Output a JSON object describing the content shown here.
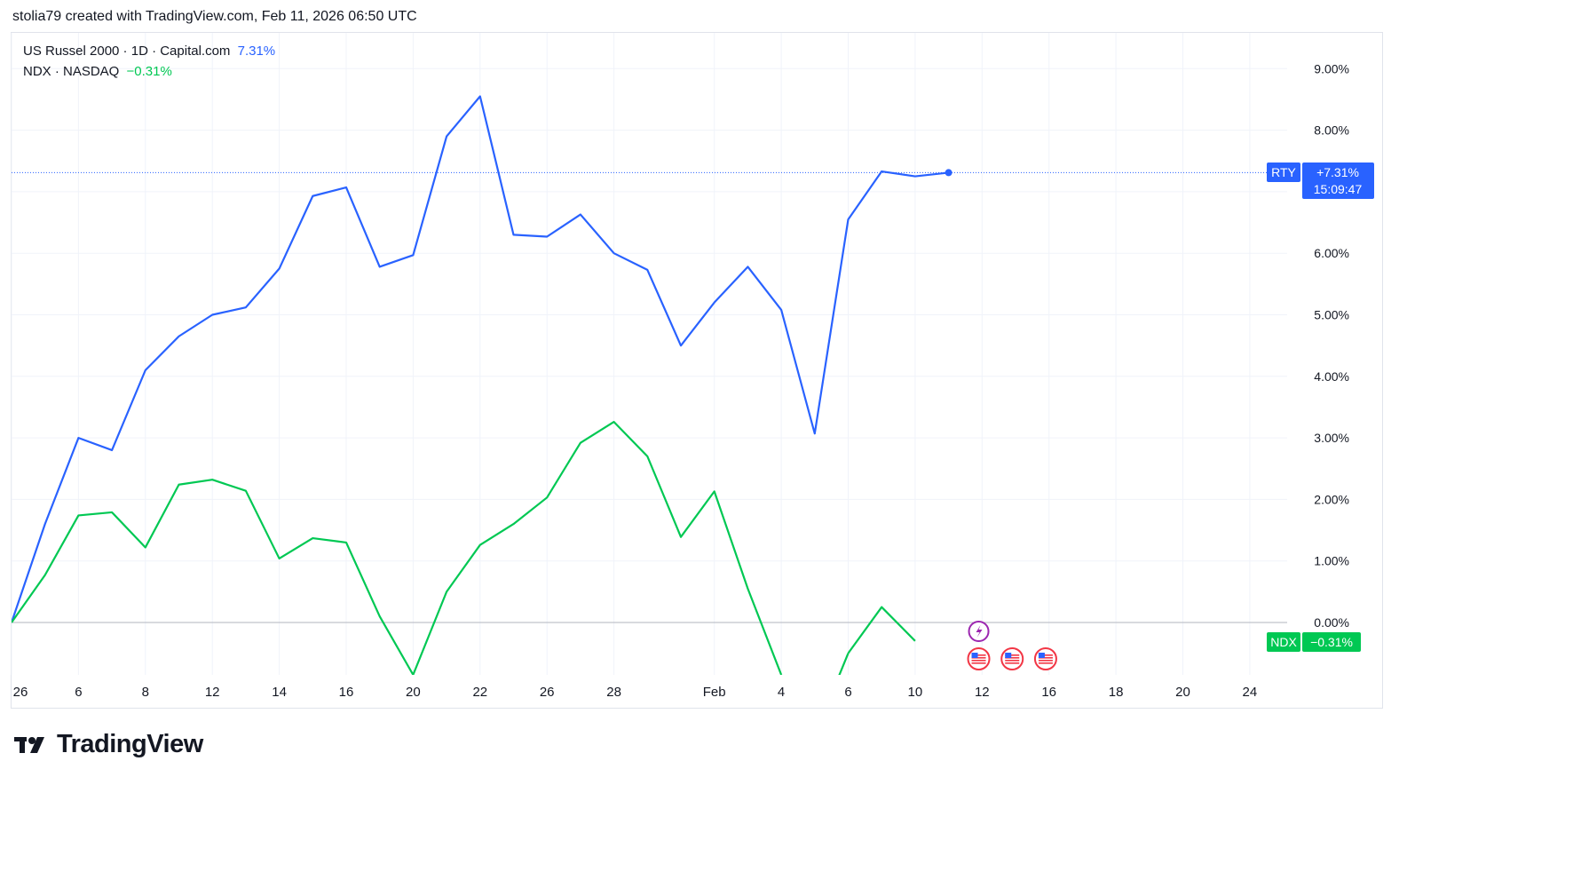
{
  "header": {
    "text": "stolia79 created with TradingView.com, Feb 11, 2026 06:50 UTC"
  },
  "legend": {
    "rty_label": "US Russel 2000 · 1D · Capital.com",
    "rty_value": "7.31%",
    "ndx_label": "NDX · NASDAQ",
    "ndx_value": "−0.31%"
  },
  "tags": {
    "rty_symbol": "RTY",
    "rty_value": "+7.31%",
    "rty_countdown": "15:09:47",
    "ndx_symbol": "NDX",
    "ndx_value": "−0.31%"
  },
  "brand": {
    "name": "TradingView"
  },
  "colors": {
    "rty": "#2962ff",
    "ndx": "#00c853",
    "event_purple": "#9c27b0",
    "event_red": "#f23645"
  },
  "chart_data": {
    "type": "line",
    "y_unit": "%",
    "ylim": [
      -0.85,
      9.3
    ],
    "y_ticks": [
      0,
      1,
      2,
      3,
      4,
      5,
      6,
      7,
      8,
      9
    ],
    "y_tick_labels": [
      "0.00%",
      "1.00%",
      "2.00%",
      "3.00%",
      "4.00%",
      "5.00%",
      "6.00%",
      "7.00%",
      "8.00%",
      "9.00%"
    ],
    "x_tick_labels": [
      {
        "i": 0,
        "label": "26"
      },
      {
        "i": 2,
        "label": "6"
      },
      {
        "i": 4,
        "label": "8"
      },
      {
        "i": 6,
        "label": "12"
      },
      {
        "i": 8,
        "label": "14"
      },
      {
        "i": 10,
        "label": "16"
      },
      {
        "i": 12,
        "label": "20"
      },
      {
        "i": 14,
        "label": "22"
      },
      {
        "i": 16,
        "label": "26"
      },
      {
        "i": 18,
        "label": "28"
      },
      {
        "i": 21,
        "label": "Feb"
      },
      {
        "i": 23,
        "label": "4"
      },
      {
        "i": 25,
        "label": "6"
      },
      {
        "i": 27,
        "label": "10"
      },
      {
        "i": 29,
        "label": "12"
      },
      {
        "i": 31,
        "label": "16"
      },
      {
        "i": 33,
        "label": "18"
      },
      {
        "i": 35,
        "label": "20"
      },
      {
        "i": 37,
        "label": "24"
      }
    ],
    "grid": true,
    "series": [
      {
        "name": "US Russel 2000",
        "values": [
          0.0,
          1.6,
          3.0,
          2.8,
          4.1,
          4.65,
          5.0,
          5.12,
          5.75,
          6.93,
          7.07,
          5.78,
          5.97,
          7.9,
          8.55,
          6.3,
          6.27,
          6.63,
          6.0,
          5.73,
          4.5,
          5.2,
          5.78,
          5.08,
          3.07,
          6.55,
          7.33,
          7.25,
          7.31
        ]
      },
      {
        "name": "NDX",
        "values": [
          0.0,
          0.77,
          1.74,
          1.79,
          1.22,
          2.24,
          2.32,
          2.14,
          1.04,
          1.37,
          1.3,
          0.1,
          -0.85,
          0.5,
          1.26,
          1.6,
          2.03,
          2.92,
          3.26,
          2.7,
          1.39,
          2.13,
          0.55,
          -0.85,
          null,
          -0.5,
          0.25,
          -0.3
        ]
      }
    ],
    "current": [
      {
        "series": "RTY",
        "value": 7.31
      },
      {
        "series": "NDX",
        "value": -0.31
      }
    ],
    "events": [
      {
        "i": 28.9,
        "kind": "earnings"
      },
      {
        "i": 28.9,
        "kind": "us-flag"
      },
      {
        "i": 29.9,
        "kind": "us-flag"
      },
      {
        "i": 30.9,
        "kind": "us-flag"
      }
    ]
  }
}
